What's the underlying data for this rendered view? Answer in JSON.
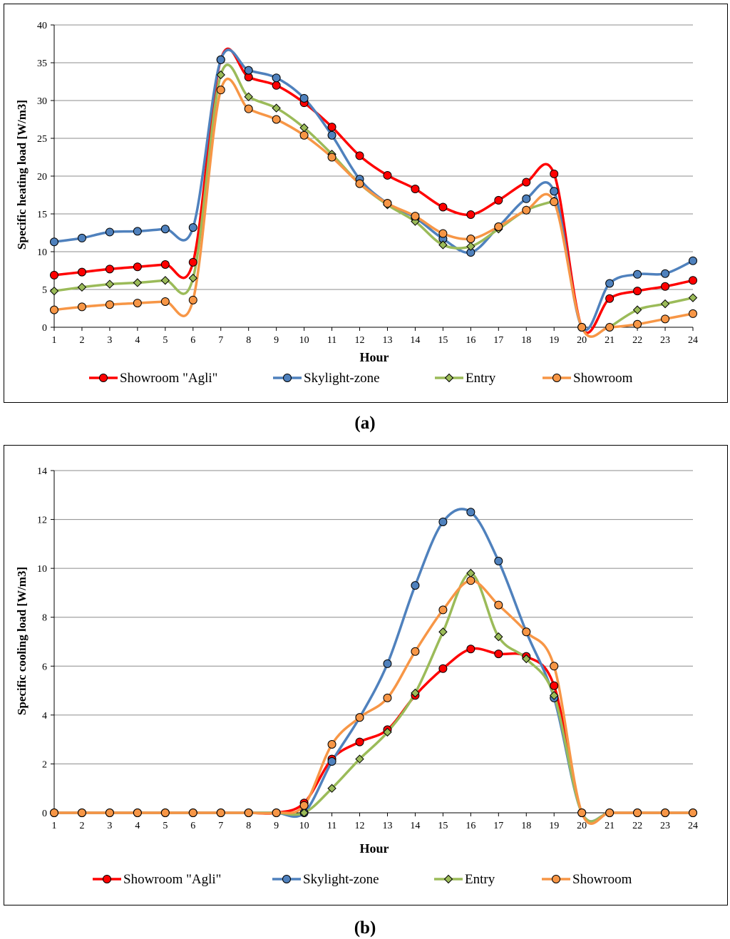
{
  "panel_labels": [
    "(a)",
    "(b)"
  ],
  "chart_data": [
    {
      "type": "line",
      "xlabel": "Hour",
      "ylabel": "Specific heating load [W/m3]",
      "categories": [
        1,
        2,
        3,
        4,
        5,
        6,
        7,
        8,
        9,
        10,
        11,
        12,
        13,
        14,
        15,
        16,
        17,
        18,
        19,
        20,
        21,
        22,
        23,
        24
      ],
      "ylim": [
        0,
        40
      ],
      "yticks": [
        0,
        5,
        10,
        15,
        20,
        25,
        30,
        35,
        40
      ],
      "grid": "horizontal",
      "legend_position": "bottom",
      "series": [
        {
          "name": "Showroom \"Agli\"",
          "color": "#ff0000",
          "marker": "circle",
          "values": [
            6.9,
            7.3,
            7.7,
            8.0,
            8.3,
            8.6,
            35.4,
            33.1,
            32.0,
            29.7,
            26.5,
            22.7,
            20.1,
            18.3,
            15.9,
            14.9,
            16.8,
            19.2,
            20.3,
            0,
            3.8,
            4.8,
            5.4,
            6.2
          ]
        },
        {
          "name": "Skylight-zone",
          "color": "#4f81bd",
          "marker": "circle",
          "values": [
            11.3,
            11.8,
            12.6,
            12.7,
            13.0,
            13.2,
            35.4,
            34.0,
            33.0,
            30.3,
            25.4,
            19.6,
            16.4,
            14.5,
            11.7,
            9.9,
            13.3,
            17.0,
            18.0,
            0,
            5.8,
            7.0,
            7.1,
            8.8
          ]
        },
        {
          "name": "Entry",
          "color": "#9bbb59",
          "marker": "diamond",
          "values": [
            4.8,
            5.3,
            5.7,
            5.9,
            6.2,
            6.5,
            33.4,
            30.5,
            29.0,
            26.4,
            22.9,
            19.0,
            16.2,
            14.0,
            10.9,
            10.7,
            13.0,
            15.5,
            16.7,
            null,
            0,
            2.3,
            3.1,
            3.9
          ]
        },
        {
          "name": "Showroom",
          "color": "#f79646",
          "marker": "circle",
          "values": [
            2.3,
            2.7,
            3.0,
            3.2,
            3.4,
            3.6,
            31.4,
            28.9,
            27.5,
            25.4,
            22.5,
            19.0,
            16.4,
            14.7,
            12.4,
            11.7,
            13.3,
            15.5,
            16.6,
            0,
            0,
            0.4,
            1.1,
            1.8
          ]
        }
      ]
    },
    {
      "type": "line",
      "xlabel": "Hour",
      "ylabel": "Specific cooling load [W/m3]",
      "categories": [
        1,
        2,
        3,
        4,
        5,
        6,
        7,
        8,
        9,
        10,
        11,
        12,
        13,
        14,
        15,
        16,
        17,
        18,
        19,
        20,
        21,
        22,
        23,
        24
      ],
      "ylim": [
        0,
        14
      ],
      "yticks": [
        0,
        2,
        4,
        6,
        8,
        10,
        12,
        14
      ],
      "grid": "horizontal",
      "legend_position": "bottom",
      "series": [
        {
          "name": "Showroom \"Agli\"",
          "color": "#ff0000",
          "marker": "circle",
          "values": [
            0,
            0,
            0,
            0,
            0,
            0,
            0,
            0,
            0,
            0.4,
            2.2,
            2.9,
            3.4,
            4.8,
            5.9,
            6.7,
            6.5,
            6.4,
            5.2,
            0,
            0,
            0,
            0,
            0
          ]
        },
        {
          "name": "Skylight-zone",
          "color": "#4f81bd",
          "marker": "circle",
          "values": [
            0,
            0,
            0,
            0,
            0,
            0,
            0,
            0,
            0,
            0.0,
            2.1,
            3.9,
            6.1,
            9.3,
            11.9,
            12.3,
            10.3,
            7.4,
            4.7,
            0,
            0,
            0,
            0,
            0
          ]
        },
        {
          "name": "Entry",
          "color": "#9bbb59",
          "marker": "diamond",
          "values": [
            0,
            0,
            0,
            0,
            0,
            0,
            0,
            0,
            0,
            0.0,
            1.0,
            2.2,
            3.3,
            4.9,
            7.4,
            9.8,
            7.2,
            6.3,
            4.8,
            0,
            0,
            0,
            0,
            0
          ]
        },
        {
          "name": "Showroom",
          "color": "#f79646",
          "marker": "circle",
          "values": [
            0,
            0,
            0,
            0,
            0,
            0,
            0,
            0,
            0,
            0.3,
            2.8,
            3.9,
            4.7,
            6.6,
            8.3,
            9.5,
            8.5,
            7.4,
            6.0,
            0,
            0,
            0,
            0,
            0
          ]
        }
      ]
    }
  ]
}
